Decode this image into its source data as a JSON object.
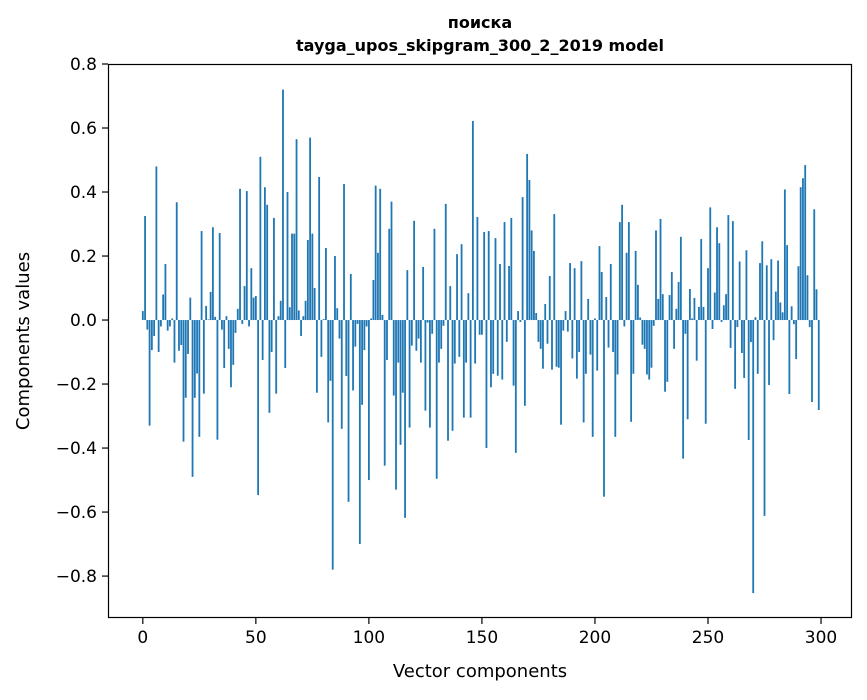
{
  "chart_data": {
    "type": "bar",
    "title_line1": "поиска",
    "title_line2": "tayga_upos_skipgram_300_2_2019 model",
    "xlabel": "Vector components",
    "ylabel": "Components values",
    "xlim": [
      -15.4,
      313.7
    ],
    "ylim": [
      -0.931,
      0.8
    ],
    "xticks": [
      0,
      50,
      100,
      150,
      200,
      250,
      300
    ],
    "xtick_labels": [
      "0",
      "50",
      "100",
      "150",
      "200",
      "250",
      "300"
    ],
    "yticks": [
      -0.8,
      -0.6,
      -0.4,
      -0.2,
      0.0,
      0.2,
      0.4,
      0.6,
      0.8
    ],
    "ytick_labels": [
      "−0.8",
      "−0.6",
      "−0.4",
      "−0.2",
      "0.0",
      "0.2",
      "0.4",
      "0.6",
      "0.8"
    ],
    "grid": false,
    "bar_color": "#1f77b4",
    "values": [
      0.028,
      0.325,
      -0.03,
      -0.33,
      -0.094,
      -0.05,
      0.48,
      -0.1,
      -0.02,
      0.08,
      0.175,
      -0.033,
      -0.02,
      0.005,
      -0.133,
      0.368,
      -0.096,
      -0.078,
      -0.38,
      -0.243,
      -0.106,
      0.07,
      -0.49,
      -0.243,
      -0.167,
      -0.365,
      0.278,
      -0.23,
      0.044,
      0.002,
      0.088,
      0.29,
      0.01,
      -0.374,
      0.272,
      -0.03,
      -0.15,
      0.012,
      -0.09,
      -0.21,
      -0.14,
      -0.04,
      0.035,
      0.41,
      -0.012,
      0.106,
      0.403,
      -0.02,
      0.162,
      0.07,
      0.075,
      -0.547,
      0.51,
      -0.125,
      0.415,
      0.36,
      -0.29,
      -0.1,
      0.319,
      -0.23,
      0.012,
      0.06,
      0.72,
      -0.15,
      0.4,
      0.04,
      0.27,
      0.27,
      0.565,
      0.03,
      -0.05,
      0.012,
      0.06,
      0.25,
      0.57,
      0.27,
      0.1,
      -0.227,
      0.447,
      -0.115,
      0.003,
      0.225,
      -0.32,
      -0.19,
      -0.78,
      0.2,
      0.037,
      -0.058,
      -0.34,
      0.425,
      -0.175,
      -0.568,
      0.144,
      -0.22,
      -0.083,
      -0.012,
      -0.7,
      -0.265,
      -0.094,
      -0.02,
      -0.5,
      0.005,
      0.125,
      0.42,
      0.21,
      0.41,
      0.016,
      -0.455,
      -0.125,
      0.285,
      0.37,
      -0.236,
      -0.53,
      -0.133,
      -0.39,
      -0.227,
      -0.618,
      0.156,
      -0.336,
      -0.08,
      0.31,
      -0.096,
      -0.058,
      -0.133,
      0.166,
      -0.283,
      -0.008,
      -0.336,
      -0.043,
      0.285,
      -0.496,
      -0.133,
      -0.09,
      -0.018,
      0.363,
      -0.377,
      0.106,
      -0.346,
      -0.136,
      0.206,
      -0.115,
      0.237,
      -0.305,
      -0.133,
      0.084,
      -0.305,
      0.622,
      -0.136,
      0.322,
      -0.046,
      -0.046,
      0.275,
      -0.4,
      0.278,
      -0.21,
      -0.168,
      0.256,
      -0.174,
      0.175,
      -0.186,
      0.306,
      -0.068,
      0.169,
      0.319,
      -0.205,
      -0.415,
      0.028,
      -0.006,
      0.384,
      -0.268,
      0.519,
      0.4375,
      0.28,
      0.216,
      0.022,
      -0.068,
      -0.09,
      -0.152,
      0.05,
      -0.074,
      0.1375,
      -0.155,
      0.331,
      -0.146,
      -0.149,
      -0.327,
      -0.033,
      0.028,
      -0.036,
      0.178,
      -0.12,
      0.162,
      -0.183,
      -0.1,
      0.184,
      -0.32,
      -0.168,
      0.066,
      -0.108,
      -0.365,
      0.005,
      -0.158,
      0.231,
      0.15,
      -0.552,
      0.072,
      -0.086,
      0.175,
      -0.1,
      -0.365,
      -0.17,
      0.306,
      0.36,
      -0.02,
      0.21,
      0.306,
      -0.318,
      -0.168,
      0.216,
      0.11,
      0.008,
      -0.077,
      -0.09,
      -0.17,
      -0.186,
      -0.149,
      -0.018,
      0.28,
      0.066,
      0.316,
      0.081,
      -0.224,
      -0.193,
      0.078,
      0.15,
      -0.09,
      0.035,
      0.119,
      0.26,
      -0.433,
      -0.043,
      -0.31,
      0.097,
      0.005,
      0.069,
      -0.127,
      0.041,
      0.253,
      0.041,
      -0.324,
      0.162,
      0.352,
      -0.028,
      0.086,
      0.29,
      0.24,
      -0.006,
      0.046,
      0.081,
      0.328,
      -0.087,
      0.309,
      -0.215,
      -0.022,
      0.183,
      -0.103,
      -0.181,
      0.218,
      -0.375,
      -0.069,
      -0.853,
      0.009,
      -0.168,
      0.178,
      0.246,
      -0.612,
      0.171,
      -0.203,
      0.19,
      -0.063,
      0.089,
      0.186,
      0.055,
      0.024,
      0.408,
      0.234,
      -0.231,
      0.043,
      -0.013,
      -0.122,
      0.168,
      0.415,
      0.443,
      0.484,
      0.14,
      -0.022,
      -0.256,
      0.346,
      0.096,
      -0.281
    ]
  }
}
